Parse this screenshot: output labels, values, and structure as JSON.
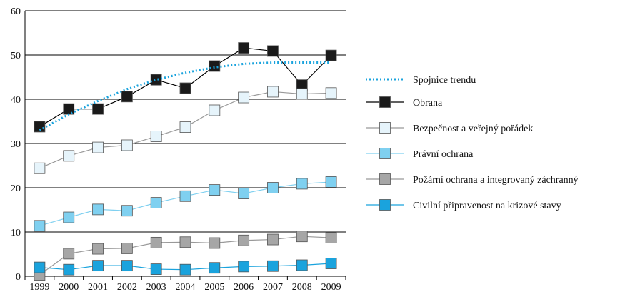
{
  "chart_data": {
    "type": "line",
    "ylim": [
      0,
      60
    ],
    "yticks": [
      0,
      10,
      20,
      30,
      40,
      50,
      60
    ],
    "grid": true,
    "legend_position": "right",
    "categories": [
      "1999",
      "2000",
      "2001",
      "2002",
      "2003",
      "2004",
      "2005",
      "2006",
      "2007",
      "2008",
      "2009"
    ],
    "trend": {
      "name": "Spojnice trendu",
      "color": "#1aa3dd",
      "values": [
        33.0,
        36.6,
        39.6,
        42.3,
        44.4,
        46.0,
        47.2,
        48.0,
        48.3,
        48.3,
        48.3
      ]
    },
    "series": [
      {
        "name": "Obrana",
        "color": "#1a1a1a",
        "line_color": "#000000",
        "values": [
          33.8,
          37.8,
          37.8,
          40.6,
          44.4,
          42.5,
          47.5,
          51.6,
          50.9,
          43.2,
          49.9
        ]
      },
      {
        "name": "Bezpečnost a veřejný pořádek",
        "color": "#e6f4fb",
        "line_color": "#999999",
        "values": [
          24.4,
          27.2,
          29.1,
          29.6,
          31.6,
          33.7,
          37.5,
          40.4,
          41.7,
          41.2,
          41.4
        ]
      },
      {
        "name": "Právní ochrana",
        "color": "#7fd0f0",
        "line_color": "#7fd0f0",
        "values": [
          11.4,
          13.3,
          15.1,
          14.8,
          16.6,
          18.1,
          19.5,
          18.7,
          20.0,
          20.9,
          21.3
        ]
      },
      {
        "name": "Požární ochrana a integrovaný záchranný",
        "color": "#a6a6a6",
        "line_color": "#999999",
        "values": [
          0.3,
          5.1,
          6.2,
          6.3,
          7.6,
          7.7,
          7.5,
          8.1,
          8.3,
          9.0,
          8.7
        ]
      },
      {
        "name": "Civilní připravenost na krizové stavy",
        "color": "#1aa3dd",
        "line_color": "#1aa3dd",
        "values": [
          2.0,
          1.5,
          2.4,
          2.4,
          1.6,
          1.5,
          1.9,
          2.2,
          2.3,
          2.5,
          2.9
        ]
      }
    ]
  }
}
